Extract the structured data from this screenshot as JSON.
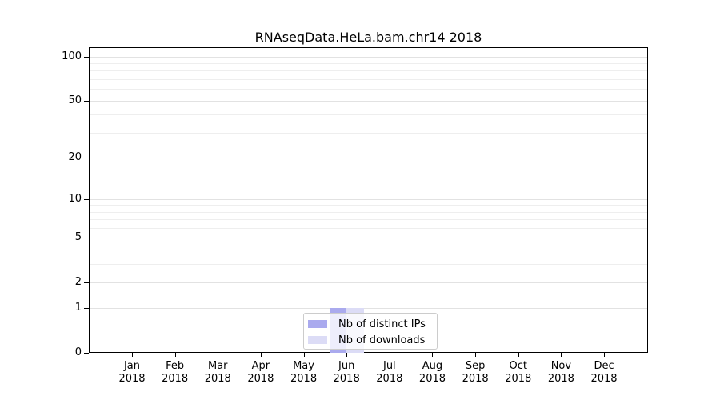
{
  "title": "RNAseqData.HeLa.bam.chr14 2018",
  "chart_data": {
    "type": "bar",
    "title": "RNAseqData.HeLa.bam.chr14 2018",
    "categories": [
      "Jan 2018",
      "Feb 2018",
      "Mar 2018",
      "Apr 2018",
      "May 2018",
      "Jun 2018",
      "Jul 2018",
      "Aug 2018",
      "Sep 2018",
      "Oct 2018",
      "Nov 2018",
      "Dec 2018"
    ],
    "series": [
      {
        "name": "Nb of distinct IPs",
        "color": "#aaaaee",
        "values": [
          0,
          0,
          0,
          0,
          0,
          1,
          0,
          0,
          0,
          0,
          0,
          0
        ]
      },
      {
        "name": "Nb of downloads",
        "color": "#dcdcf6",
        "values": [
          0,
          0,
          0,
          0,
          0,
          1,
          0,
          0,
          0,
          0,
          0,
          0
        ]
      }
    ],
    "xlabel": "",
    "ylabel": "",
    "yscale": "log1p",
    "ylim": [
      0,
      116
    ],
    "yticks": [
      0,
      1,
      2,
      5,
      10,
      20,
      50,
      100
    ],
    "minor_gridlines": [
      3,
      4,
      6,
      7,
      8,
      9,
      30,
      40,
      60,
      70,
      80,
      90
    ],
    "grid": true,
    "legend": {
      "position": "bottom-center",
      "items": [
        {
          "label": "Nb of distinct IPs",
          "color": "#aaaaee"
        },
        {
          "label": "Nb of downloads",
          "color": "#dcdcf6"
        }
      ]
    },
    "colors": {
      "axis": "#000000",
      "grid_major": "#e2e2e2",
      "grid_minor": "#eeeeee",
      "background": "#ffffff",
      "legend_border": "#cccccc"
    }
  }
}
